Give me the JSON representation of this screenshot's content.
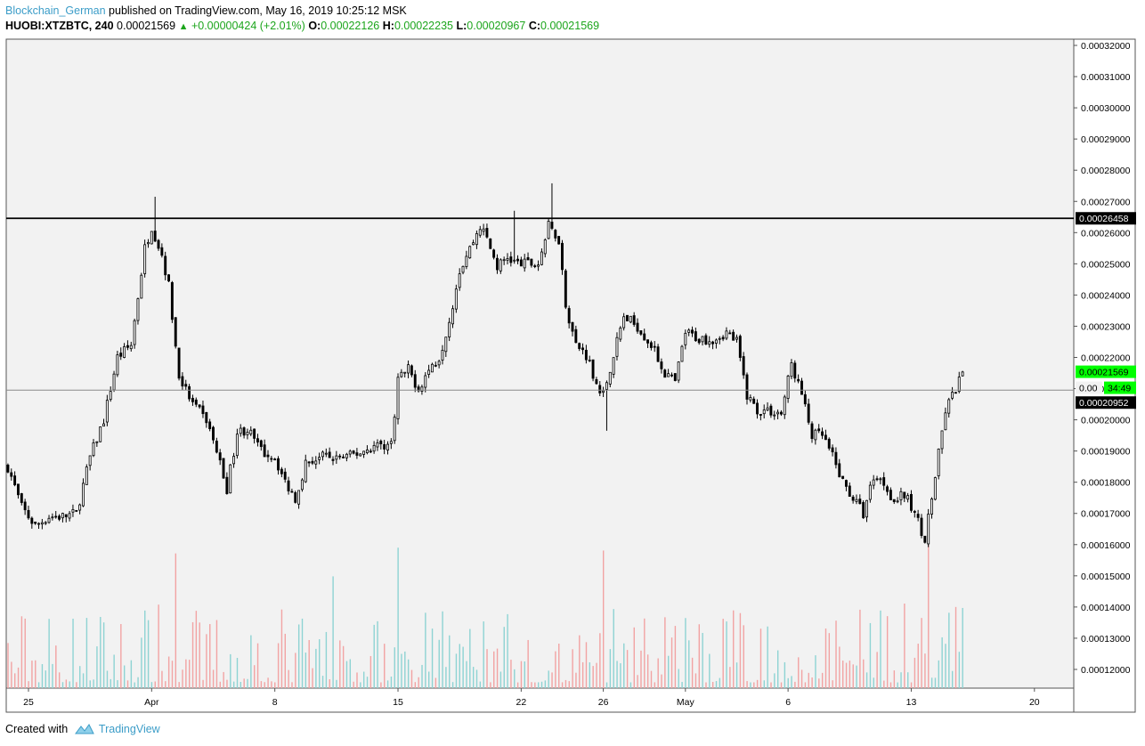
{
  "header": {
    "author": "Blockchain_German",
    "published_text": "published on TradingView.com, May 16, 2019 10:25:12 MSK",
    "symbol": "HUOBI:XTZBTC, 240",
    "last": "0.00021569",
    "change": "+0.00000424 (+2.01%)",
    "o_label": "O:",
    "o_val": "0.00022126",
    "h_label": "H:",
    "h_val": "0.00022235",
    "l_label": "L:",
    "l_val": "0.00020967",
    "c_label": "C:",
    "c_val": "0.00021569"
  },
  "footer": {
    "created_with": "Created with",
    "brand": "TradingView"
  },
  "colors": {
    "candle": "#000000",
    "volume_up": "#8ed3d3",
    "volume_down": "#f2a3a3",
    "plot_bg": "#f2f2f2",
    "current_price_tag": "#00ff00",
    "axis_line": "#555555"
  },
  "chart_data": {
    "type": "candlestick",
    "symbol": "HUOBI:XTZBTC",
    "interval": "240",
    "ylim": [
      0.000114,
      0.000322
    ],
    "y_ticks": [
      "0.00032000",
      "0.00031000",
      "0.00030000",
      "0.00029000",
      "0.00028000",
      "0.00027000",
      "0.00026000",
      "0.00025000",
      "0.00024000",
      "0.00023000",
      "0.00022000",
      "0.00021000",
      "0.00020000",
      "0.00019000",
      "0.00018000",
      "0.00017000",
      "0.00016000",
      "0.00015000",
      "0.00014000",
      "0.00013000",
      "0.00012000"
    ],
    "x_ticks": [
      {
        "label": "25",
        "index": 6
      },
      {
        "label": "Apr",
        "index": 42
      },
      {
        "label": "8",
        "index": 78
      },
      {
        "label": "15",
        "index": 114
      },
      {
        "label": "22",
        "index": 150
      },
      {
        "label": "26",
        "index": 174
      },
      {
        "label": "May",
        "index": 198
      },
      {
        "label": "6",
        "index": 228
      },
      {
        "label": "13",
        "index": 264
      },
      {
        "label": "20",
        "index": 300
      }
    ],
    "x_total_slots": 312,
    "horizontal_lines": [
      {
        "price": 0.00026458,
        "label": "0.00026458",
        "style": "solid-black"
      },
      {
        "price": 0.00020952,
        "label": "0.00020952",
        "style": "thin-gray"
      }
    ],
    "price_tags": [
      {
        "price": 0.00021569,
        "text": "0.00021569",
        "kind": "current"
      },
      {
        "text": "34:49",
        "kind": "countdown"
      }
    ],
    "close_path": [
      [
        0,
        0.000185
      ],
      [
        4,
        0.000172
      ],
      [
        8,
        0.000166
      ],
      [
        12,
        0.000169
      ],
      [
        16,
        0.000169
      ],
      [
        20,
        0.00017
      ],
      [
        24,
        0.000188
      ],
      [
        28,
        0.0002
      ],
      [
        32,
        0.00022
      ],
      [
        36,
        0.000224
      ],
      [
        40,
        0.000255
      ],
      [
        42,
        0.000262
      ],
      [
        45,
        0.000253
      ],
      [
        47,
        0.000243
      ],
      [
        50,
        0.000214
      ],
      [
        54,
        0.000205
      ],
      [
        58,
        0.0002
      ],
      [
        61,
        0.00019
      ],
      [
        64,
        0.000178
      ],
      [
        67,
        0.000196
      ],
      [
        70,
        0.000197
      ],
      [
        74,
        0.00019
      ],
      [
        78,
        0.000188
      ],
      [
        81,
        0.00018
      ],
      [
        84,
        0.000175
      ],
      [
        87,
        0.000186
      ],
      [
        91,
        0.000188
      ],
      [
        95,
        0.000188
      ],
      [
        99,
        0.000188
      ],
      [
        104,
        0.00019
      ],
      [
        108,
        0.000192
      ],
      [
        112,
        0.000192
      ],
      [
        114,
        0.000213
      ],
      [
        117,
        0.000216
      ],
      [
        120,
        0.00021
      ],
      [
        123,
        0.000216
      ],
      [
        126,
        0.00022
      ],
      [
        129,
        0.000232
      ],
      [
        132,
        0.000248
      ],
      [
        135,
        0.000255
      ],
      [
        138,
        0.000262
      ],
      [
        140,
        0.000258
      ],
      [
        143,
        0.000249
      ],
      [
        146,
        0.000252
      ],
      [
        149,
        0.00025
      ],
      [
        152,
        0.00025
      ],
      [
        155,
        0.00025
      ],
      [
        158,
        0.000262
      ],
      [
        161,
        0.000258
      ],
      [
        163,
        0.000237
      ],
      [
        166,
        0.000224
      ],
      [
        169,
        0.000221
      ],
      [
        172,
        0.000212
      ],
      [
        174,
        0.000208
      ],
      [
        177,
        0.000221
      ],
      [
        180,
        0.000233
      ],
      [
        184,
        0.00023
      ],
      [
        188,
        0.000224
      ],
      [
        192,
        0.000215
      ],
      [
        195,
        0.000212
      ],
      [
        198,
        0.000228
      ],
      [
        202,
        0.000226
      ],
      [
        206,
        0.000226
      ],
      [
        210,
        0.000228
      ],
      [
        213,
        0.000225
      ],
      [
        216,
        0.000208
      ],
      [
        219,
        0.000203
      ],
      [
        222,
        0.000203
      ],
      [
        226,
        0.000202
      ],
      [
        229,
        0.000218
      ],
      [
        232,
        0.000208
      ],
      [
        235,
        0.000195
      ],
      [
        238,
        0.000195
      ],
      [
        241,
        0.000188
      ],
      [
        244,
        0.00018
      ],
      [
        247,
        0.000175
      ],
      [
        250,
        0.00017
      ],
      [
        253,
        0.000182
      ],
      [
        256,
        0.00018
      ],
      [
        259,
        0.000174
      ],
      [
        262,
        0.000176
      ],
      [
        265,
        0.00017
      ],
      [
        268,
        0.000162
      ],
      [
        271,
        0.000182
      ],
      [
        274,
        0.000203
      ],
      [
        277,
        0.00021
      ],
      [
        279,
        0.000215
      ]
    ],
    "spikes": [
      {
        "index": 43,
        "high": 0.0002715
      },
      {
        "index": 148,
        "high": 0.000267
      },
      {
        "index": 159,
        "high": 0.0002758
      },
      {
        "index": 175,
        "low": 0.0001965
      },
      {
        "index": 269,
        "low": 0.0001592
      }
    ],
    "volume": {
      "tall_bars": [
        {
          "index": 49,
          "level": 0.94,
          "dir": "down"
        },
        {
          "index": 95,
          "level": 0.78,
          "dir": "up"
        },
        {
          "index": 114,
          "level": 0.98,
          "dir": "up"
        },
        {
          "index": 174,
          "level": 0.96,
          "dir": "down"
        },
        {
          "index": 269,
          "level": 1.0,
          "dir": "down"
        }
      ]
    }
  }
}
